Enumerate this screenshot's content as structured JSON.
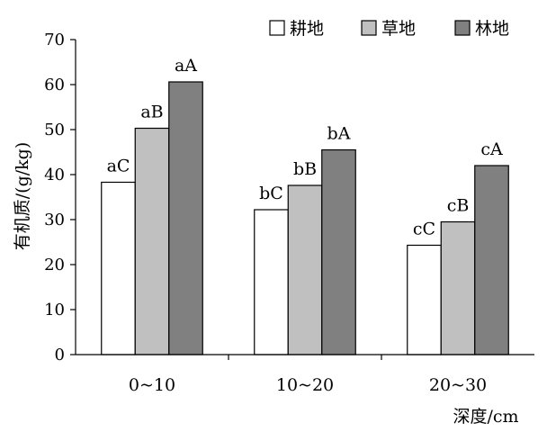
{
  "chart_data": {
    "type": "bar",
    "title": "",
    "xlabel": "深度/cm",
    "ylabel": "有机质/(g/kg)",
    "ylim": [
      0,
      70
    ],
    "yticks": [
      0,
      10,
      20,
      30,
      40,
      50,
      60,
      70
    ],
    "categories": [
      "0~10",
      "10~20",
      "20~30"
    ],
    "grid": false,
    "legend_position": "top-right",
    "series": [
      {
        "name": "耕地",
        "color": "#ffffff",
        "values": [
          38.3,
          32.2,
          24.3
        ],
        "labels": [
          "aC",
          "bC",
          "cC"
        ]
      },
      {
        "name": "草地",
        "color": "#c0c0c0",
        "values": [
          50.3,
          37.6,
          29.5
        ],
        "labels": [
          "aB",
          "bB",
          "cB"
        ]
      },
      {
        "name": "林地",
        "color": "#808080",
        "values": [
          60.6,
          45.5,
          42.0
        ],
        "labels": [
          "aA",
          "bA",
          "cA"
        ]
      }
    ]
  }
}
